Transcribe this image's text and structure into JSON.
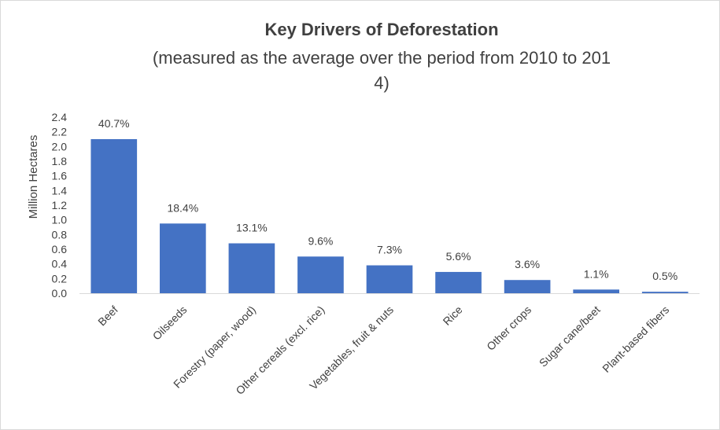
{
  "chart_data": {
    "type": "bar",
    "title": "Key Drivers of Deforestation",
    "subtitle_line1": "(measured as the average over the period from 2010 to 201",
    "subtitle_line2": "4)",
    "xlabel": "",
    "ylabel": "Million Hectares",
    "ylim": [
      0,
      2.4
    ],
    "yticks": [
      "0.0",
      "0.2",
      "0.4",
      "0.6",
      "0.8",
      "1.0",
      "1.2",
      "1.4",
      "1.6",
      "1.8",
      "2.0",
      "2.2",
      "2.4"
    ],
    "grid": false,
    "legend": "none",
    "bar_color": "#4472C4",
    "categories": [
      "Beef",
      "Oilseeds",
      "Forestry (paper, wood)",
      "Other cereals (excl. rice)",
      "Vegetables, fruit & nuts",
      "Rice",
      "Other crops",
      "Sugar cane/beet",
      "Plant-based fibers"
    ],
    "values": [
      2.1,
      0.95,
      0.68,
      0.5,
      0.38,
      0.29,
      0.18,
      0.05,
      0.02
    ],
    "data_labels": [
      "40.7%",
      "18.4%",
      "13.1%",
      "9.6%",
      "7.3%",
      "5.6%",
      "3.6%",
      "1.1%",
      "0.5%"
    ]
  }
}
